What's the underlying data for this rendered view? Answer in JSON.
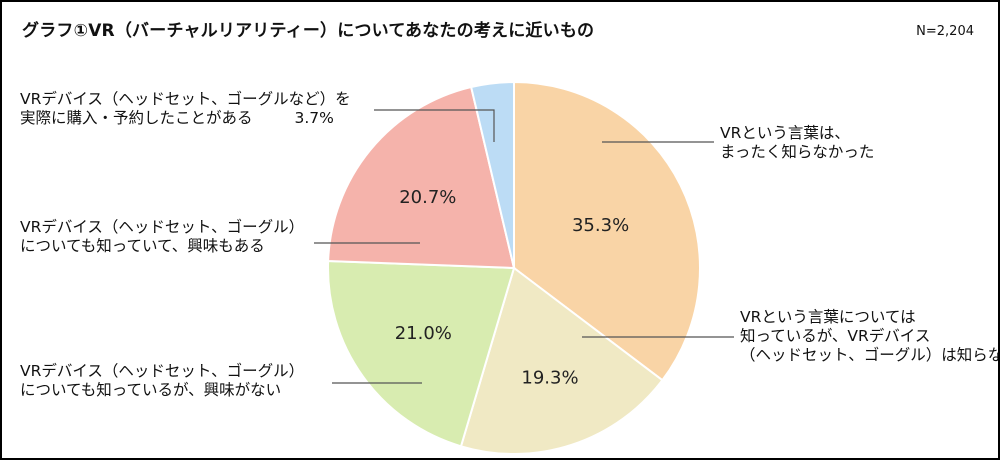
{
  "title": "グラフ①VR（バーチャルリアリティー）についてあなたの考えに近いもの",
  "sample_size": "N=2,204",
  "chart_data": {
    "type": "pie",
    "start": "12 o'clock",
    "direction": "clockwise",
    "slices": [
      {
        "label_lines": [
          "VRという言葉は、",
          "まったく知らなかった"
        ],
        "value": 35.3,
        "value_label": "35.3%",
        "color": "#f9d4a6"
      },
      {
        "label_lines": [
          "VRという言葉については",
          "知っているが、VRデバイス",
          "（ヘッドセット、ゴーグル）は知らない"
        ],
        "value": 19.3,
        "value_label": "19.3%",
        "color": "#f0e9c4"
      },
      {
        "label_lines": [
          "VRデバイス（ヘッドセット、ゴーグル）",
          "についても知っているが、興味がない"
        ],
        "value": 21.0,
        "value_label": "21.0%",
        "color": "#d8ecb0"
      },
      {
        "label_lines": [
          "VRデバイス（ヘッドセット、ゴーグル）",
          "についても知っていて、興味もある"
        ],
        "value": 20.7,
        "value_label": "20.7%",
        "color": "#f5b3ab"
      },
      {
        "label_lines": [
          "VRデバイス（ヘッドセット、ゴーグルなど）を",
          "実際に購入・予約したことがある"
        ],
        "value": 3.7,
        "value_label": "3.7%",
        "color": "#bcdcf5"
      }
    ]
  }
}
